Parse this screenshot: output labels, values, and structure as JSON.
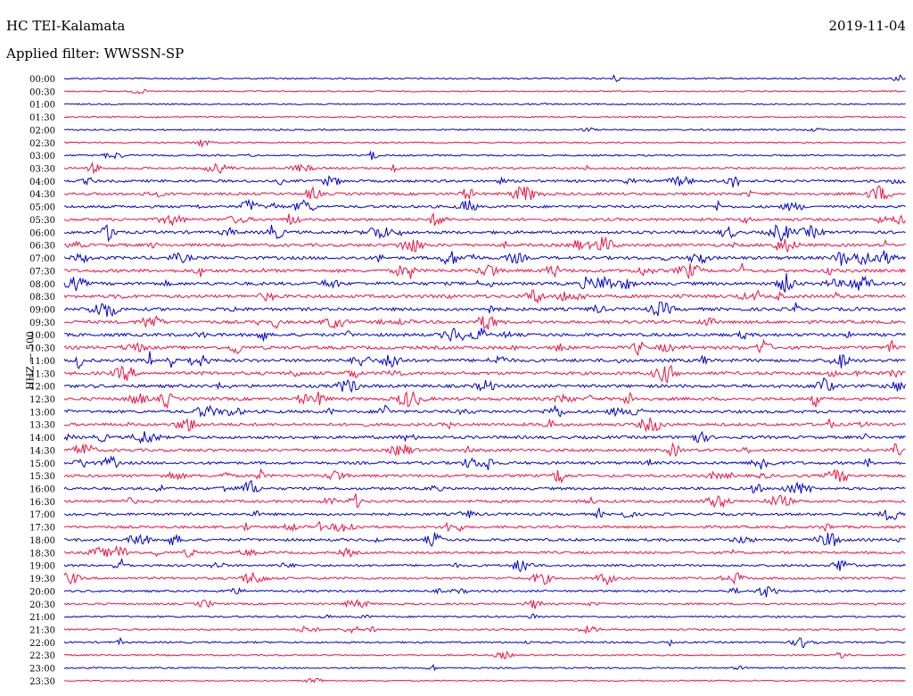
{
  "header": {
    "station": "HC TEI-Kalamata",
    "date": "2019-11-04",
    "filter": "Applied filter: WWSSN-SP"
  },
  "chart_data": {
    "type": "line",
    "title": "HC TEI-Kalamata",
    "subtitle": "Applied filter: WWSSN-SP",
    "date": "2019-11-04",
    "ylabel": "HHZ — 500",
    "trace_colors": [
      "#0000cc",
      "#ee1144"
    ],
    "grid": false,
    "rows": [
      {
        "time": "00:00",
        "activity": 0.15
      },
      {
        "time": "00:30",
        "activity": 0.05
      },
      {
        "time": "01:00",
        "activity": 0.1
      },
      {
        "time": "01:30",
        "activity": 0.1
      },
      {
        "time": "02:00",
        "activity": 0.15
      },
      {
        "time": "02:30",
        "activity": 0.1
      },
      {
        "time": "03:00",
        "activity": 0.2
      },
      {
        "time": "03:30",
        "activity": 0.35
      },
      {
        "time": "04:00",
        "activity": 0.55
      },
      {
        "time": "04:30",
        "activity": 0.6
      },
      {
        "time": "05:00",
        "activity": 0.6
      },
      {
        "time": "05:30",
        "activity": 0.65
      },
      {
        "time": "06:00",
        "activity": 0.7
      },
      {
        "time": "06:30",
        "activity": 0.75
      },
      {
        "time": "07:00",
        "activity": 0.8
      },
      {
        "time": "07:30",
        "activity": 0.8
      },
      {
        "time": "08:00",
        "activity": 0.8
      },
      {
        "time": "08:30",
        "activity": 0.8
      },
      {
        "time": "09:00",
        "activity": 0.8
      },
      {
        "time": "09:30",
        "activity": 0.75
      },
      {
        "time": "10:00",
        "activity": 0.8
      },
      {
        "time": "10:30",
        "activity": 0.8
      },
      {
        "time": "11:00",
        "activity": 0.8
      },
      {
        "time": "11:30",
        "activity": 0.8
      },
      {
        "time": "12:00",
        "activity": 0.8
      },
      {
        "time": "12:30",
        "activity": 0.75
      },
      {
        "time": "13:00",
        "activity": 0.7
      },
      {
        "time": "13:30",
        "activity": 0.7
      },
      {
        "time": "14:00",
        "activity": 0.7
      },
      {
        "time": "14:30",
        "activity": 0.65
      },
      {
        "time": "15:00",
        "activity": 0.65
      },
      {
        "time": "15:30",
        "activity": 0.65
      },
      {
        "time": "16:00",
        "activity": 0.6
      },
      {
        "time": "16:30",
        "activity": 0.6
      },
      {
        "time": "17:00",
        "activity": 0.55
      },
      {
        "time": "17:30",
        "activity": 0.55
      },
      {
        "time": "18:00",
        "activity": 0.6
      },
      {
        "time": "18:30",
        "activity": 0.5
      },
      {
        "time": "19:00",
        "activity": 0.45
      },
      {
        "time": "19:30",
        "activity": 0.45
      },
      {
        "time": "20:00",
        "activity": 0.35
      },
      {
        "time": "20:30",
        "activity": 0.3
      },
      {
        "time": "21:00",
        "activity": 0.25
      },
      {
        "time": "21:30",
        "activity": 0.25
      },
      {
        "time": "22:00",
        "activity": 0.25
      },
      {
        "time": "22:30",
        "activity": 0.15
      },
      {
        "time": "23:00",
        "activity": 0.15
      },
      {
        "time": "23:30",
        "activity": 0.05
      }
    ]
  }
}
